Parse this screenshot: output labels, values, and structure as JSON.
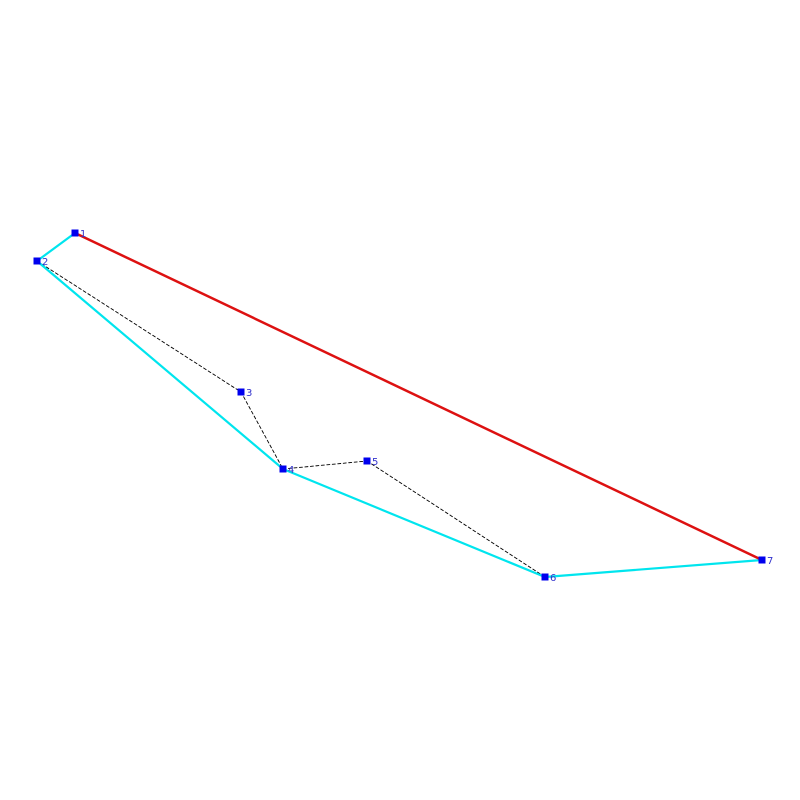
{
  "diagram": {
    "type": "polygon-hull",
    "colors": {
      "background": "#ffffff",
      "point": "#0000ee",
      "label": "#3333cc",
      "polyline": "#000000",
      "lower_hull": "#00e5ee",
      "upper_hull": "#dd1111"
    },
    "points": [
      {
        "id": "1",
        "label": "1"
      },
      {
        "id": "2",
        "label": "2"
      },
      {
        "id": "3",
        "label": "3"
      },
      {
        "id": "4",
        "label": "4"
      },
      {
        "id": "5",
        "label": "5"
      },
      {
        "id": "6",
        "label": "6"
      },
      {
        "id": "7",
        "label": "7"
      }
    ],
    "polyline_order": [
      "1",
      "2",
      "3",
      "4",
      "5",
      "6",
      "7"
    ],
    "lower_hull_order": [
      "1",
      "2",
      "4",
      "6",
      "7"
    ],
    "upper_hull_order": [
      "1",
      "7"
    ]
  }
}
